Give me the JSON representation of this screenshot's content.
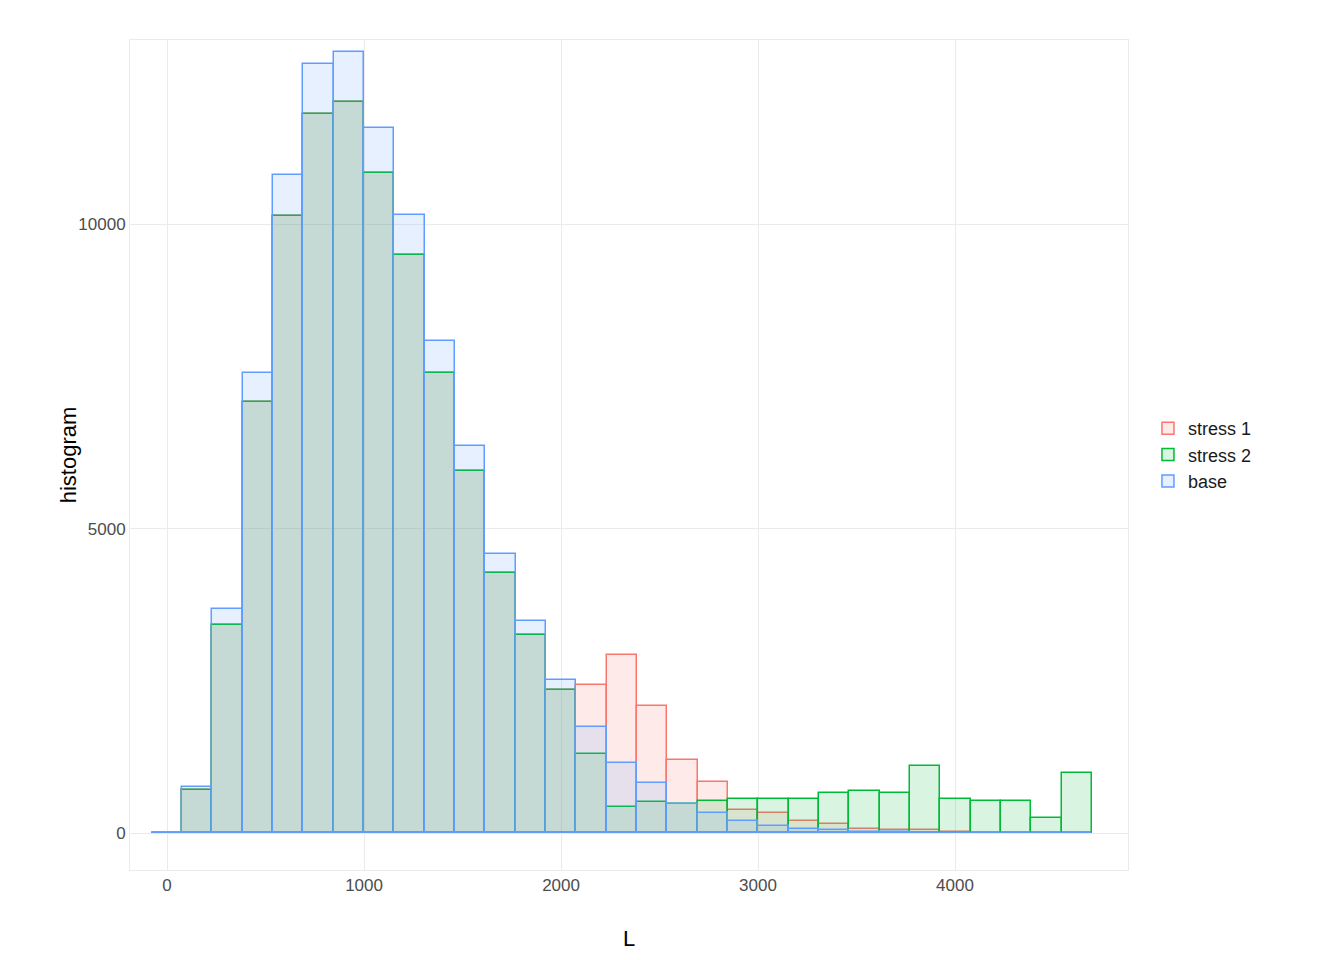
{
  "chart_data": {
    "type": "histogram",
    "x_label": "L",
    "y_label": "histogram",
    "bins": [
      -78,
      76,
      230,
      384,
      538,
      692,
      846,
      1000,
      1154,
      1308,
      1462,
      1616,
      1770,
      1924,
      2078,
      2232,
      2386,
      2540,
      2694,
      2848,
      3002,
      3156,
      3310,
      3464,
      3618,
      3772,
      3926,
      4080,
      4234,
      4388,
      4542,
      4696
    ],
    "series": [
      {
        "name": "stress 1",
        "color": "#F8766D",
        "values": [
          0,
          710,
          3420,
          7080,
          10130,
          11810,
          12000,
          10840,
          9490,
          7550,
          5940,
          4270,
          3250,
          2360,
          2430,
          2920,
          2090,
          1200,
          850,
          380,
          330,
          200,
          150,
          80,
          50,
          50,
          20,
          0,
          0,
          0,
          0
        ]
      },
      {
        "name": "stress 2",
        "color": "#00BA38",
        "values": [
          0,
          710,
          3420,
          7080,
          10130,
          11810,
          12000,
          10840,
          9490,
          7550,
          5940,
          4270,
          3250,
          2360,
          1300,
          440,
          510,
          480,
          540,
          560,
          560,
          560,
          670,
          690,
          660,
          1100,
          560,
          530,
          530,
          260,
          990
        ]
      },
      {
        "name": "base",
        "color": "#619CFF",
        "values": [
          0,
          770,
          3680,
          7550,
          10800,
          12630,
          12820,
          11580,
          10150,
          8080,
          6350,
          4580,
          3480,
          2510,
          1740,
          1150,
          820,
          480,
          330,
          210,
          130,
          80,
          50,
          30,
          20,
          10,
          5,
          0,
          0,
          0,
          0
        ]
      }
    ],
    "xlim": [
      -188,
      4878
    ],
    "ylim": [
      -600,
      13020
    ],
    "xticks": [
      0,
      1000,
      2000,
      3000,
      4000
    ],
    "yticks": [
      0,
      5000,
      10000
    ],
    "grid": true,
    "legend": "right"
  }
}
